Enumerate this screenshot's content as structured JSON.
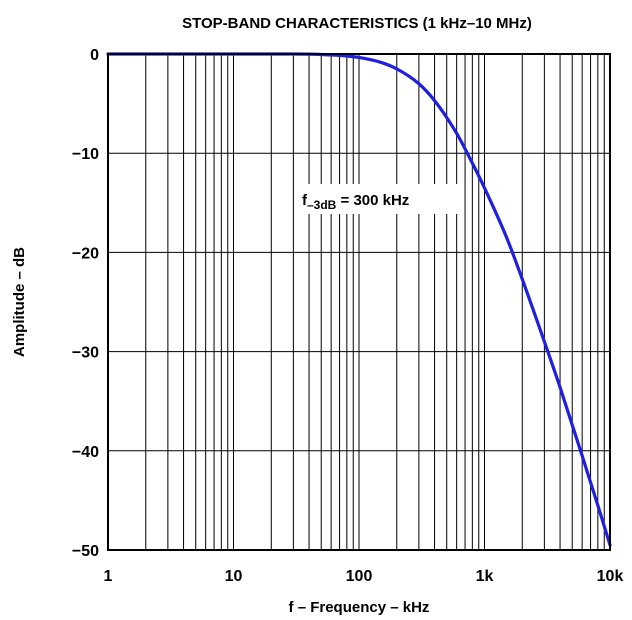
{
  "chart_data": {
    "type": "line",
    "title": "STOP-BAND CHARACTERISTICS (1 kHz–10 MHz)",
    "xlabel": "f – Frequency – kHz",
    "ylabel": "Amplitude – dB",
    "x_scale": "log",
    "xlim": [
      1,
      10000
    ],
    "ylim": [
      -50,
      0
    ],
    "x_ticks": [
      {
        "value": 1,
        "label": "1"
      },
      {
        "value": 10,
        "label": "10"
      },
      {
        "value": 100,
        "label": "100"
      },
      {
        "value": 1000,
        "label": "1k"
      },
      {
        "value": 10000,
        "label": "10k"
      }
    ],
    "y_ticks": [
      {
        "value": 0,
        "label": "0"
      },
      {
        "value": -10,
        "label": "−10"
      },
      {
        "value": -20,
        "label": "−20"
      },
      {
        "value": -30,
        "label": "−30"
      },
      {
        "value": -40,
        "label": "−40"
      },
      {
        "value": -50,
        "label": "−50"
      }
    ],
    "grid": true,
    "series": [
      {
        "color": "#1f1fe0",
        "x": [
          1,
          10,
          30,
          50,
          80,
          100,
          150,
          200,
          300,
          400,
          600,
          800,
          1000,
          1500,
          2000,
          3000,
          4000,
          6000,
          8000,
          10000
        ],
        "y": [
          0,
          0,
          0,
          -0.05,
          -0.2,
          -0.35,
          -0.85,
          -1.5,
          -3.0,
          -4.7,
          -8.0,
          -11.0,
          -13.5,
          -18.5,
          -22.7,
          -29.0,
          -33.6,
          -40.5,
          -45.5,
          -49.5
        ]
      }
    ],
    "annotation": {
      "main": "f",
      "sub": "–3dB",
      "rest": " = 300 kHz",
      "x": 1000,
      "y": -15
    }
  }
}
